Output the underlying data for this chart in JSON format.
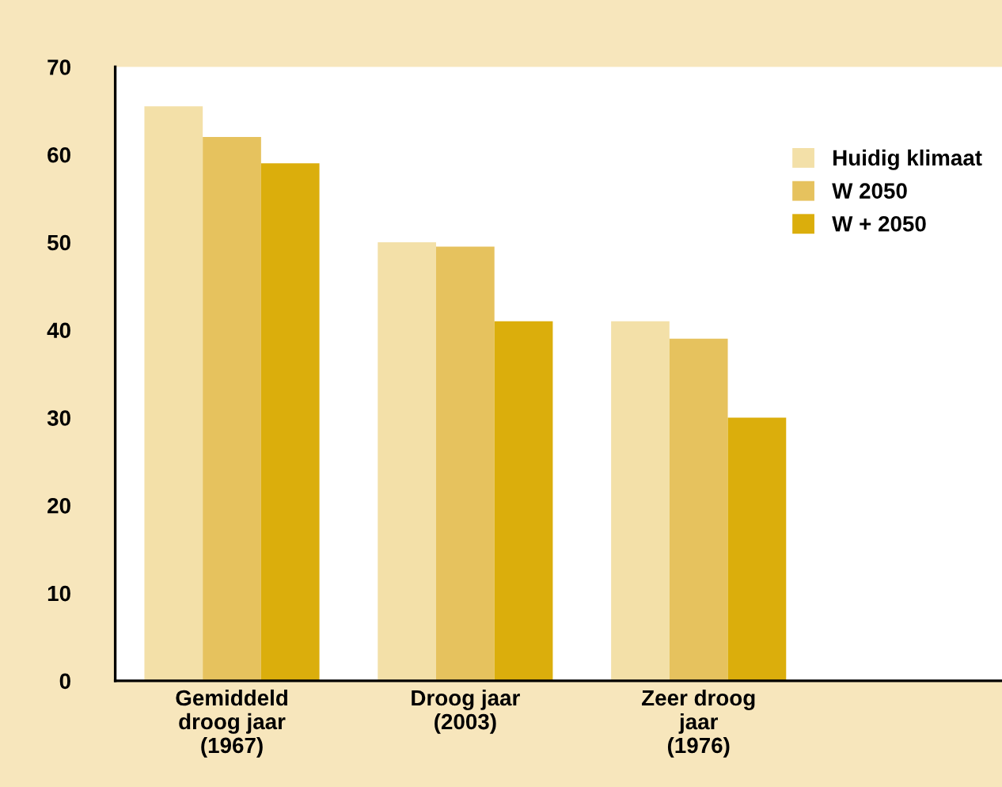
{
  "chart_data": {
    "type": "bar",
    "categories": [
      "Gemiddeld\ndroog jaar\n(1967)",
      "Droog jaar\n(2003)",
      "Zeer droog\njaar\n(1976)"
    ],
    "series": [
      {
        "name": "Huidig klimaat",
        "color": "#f3e0a8",
        "values": [
          65.5,
          50,
          41
        ]
      },
      {
        "name": "W 2050",
        "color": "#e6c25e",
        "values": [
          62,
          49.5,
          39
        ]
      },
      {
        "name": "W + 2050",
        "color": "#dbae0c",
        "values": [
          59,
          41,
          30
        ]
      }
    ],
    "ylim": [
      0,
      70
    ],
    "yticks": [
      0,
      10,
      20,
      30,
      40,
      50,
      60,
      70
    ],
    "grid": false,
    "legend": "top right"
  }
}
